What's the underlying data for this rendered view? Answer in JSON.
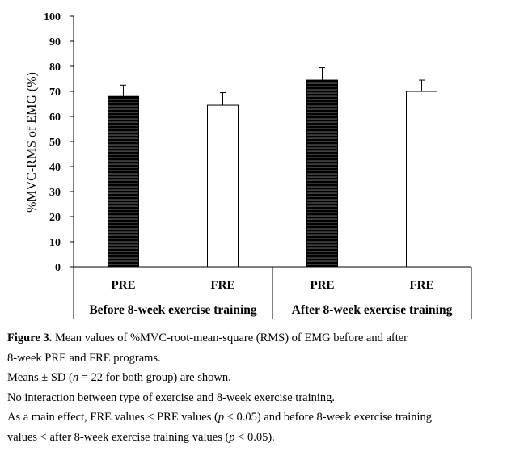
{
  "chart_data": {
    "type": "bar",
    "ylabel": "%MVC-RMS of EMG (%)",
    "ylim": [
      0,
      100
    ],
    "yticks": [
      "0",
      "10",
      "20",
      "30",
      "40",
      "50",
      "60",
      "70",
      "80",
      "90",
      "100"
    ],
    "categories": [
      "PRE",
      "FRE",
      "PRE",
      "FRE"
    ],
    "groups": [
      "Before 8-week exercise training",
      "After 8-week exercise training"
    ],
    "values": [
      68,
      64.5,
      74.5,
      70
    ],
    "errors": [
      4.5,
      5,
      5,
      4.5
    ],
    "bar_styles": [
      "striped-black",
      "white",
      "striped-black",
      "white"
    ],
    "grid": false,
    "legend": "none"
  },
  "caption": {
    "fig_label": "Figure 3.",
    "line1_rest": " Mean values of %MVC-root-mean-square (RMS) of EMG before and after",
    "line2": "8-week PRE and FRE programs.",
    "line3_a": "Means ± SD (",
    "line3_n": "n",
    "line3_b": " = 22 for both group) are shown.",
    "line4": "No interaction between type of exercise and 8-week exercise training.",
    "line5_a": "As a main effect, FRE values < PRE values (",
    "line5_p": "p",
    "line5_b": " < 0.05) and before 8-week exercise training",
    "line6_a": "values < after 8-week exercise training values (",
    "line6_p": "p",
    "line6_b": " < 0.05)."
  }
}
